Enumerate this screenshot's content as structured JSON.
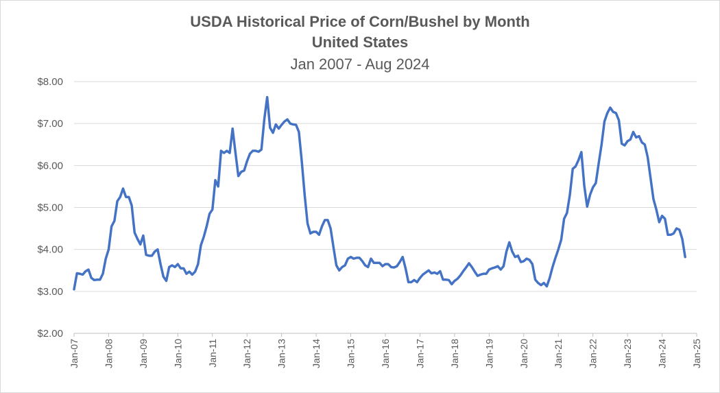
{
  "chart_data": {
    "type": "line",
    "title": "USDA Historical Price of Corn/Bushel by Month",
    "subtitle": "United States",
    "date_range": "Jan 2007 - Aug 2024",
    "ylim": [
      2.0,
      8.0
    ],
    "xlim": [
      "2007-01",
      "2025-01"
    ],
    "y_ticks": [
      "$2.00",
      "$3.00",
      "$4.00",
      "$5.00",
      "$6.00",
      "$7.00",
      "$8.00"
    ],
    "y_tick_values": [
      2,
      3,
      4,
      5,
      6,
      7,
      8
    ],
    "x_ticks": [
      "Jan-07",
      "Jan-08",
      "Jan-09",
      "Jan-10",
      "Jan-11",
      "Jan-12",
      "Jan-13",
      "Jan-14",
      "Jan-15",
      "Jan-16",
      "Jan-17",
      "Jan-18",
      "Jan-19",
      "Jan-20",
      "Jan-21",
      "Jan-22",
      "Jan-23",
      "Jan-24",
      "Jan-25"
    ],
    "grid": true,
    "line_color": "#4472c4",
    "series": [
      {
        "start": "2007-01",
        "values": [
          3.05,
          3.43,
          3.42,
          3.4,
          3.48,
          3.52,
          3.32,
          3.27,
          3.28,
          3.28,
          3.42,
          3.78,
          4.0,
          4.55,
          4.68,
          5.15,
          5.25,
          5.45,
          5.25,
          5.25,
          5.05,
          4.4,
          4.25,
          4.12,
          4.33,
          3.87,
          3.85,
          3.85,
          3.95,
          4.0,
          3.65,
          3.35,
          3.25,
          3.58,
          3.62,
          3.58,
          3.65,
          3.55,
          3.55,
          3.42,
          3.47,
          3.4,
          3.47,
          3.65,
          4.1,
          4.3,
          4.55,
          4.85,
          4.95,
          5.65,
          5.5,
          6.35,
          6.3,
          6.35,
          6.3,
          6.88,
          6.3,
          5.75,
          5.85,
          5.88,
          6.1,
          6.28,
          6.35,
          6.35,
          6.33,
          6.38,
          7.1,
          7.63,
          6.9,
          6.78,
          6.98,
          6.88,
          6.97,
          7.05,
          7.1,
          7.0,
          6.98,
          6.97,
          6.8,
          6.1,
          5.3,
          4.62,
          4.38,
          4.42,
          4.42,
          4.35,
          4.55,
          4.7,
          4.7,
          4.5,
          4.05,
          3.62,
          3.5,
          3.58,
          3.62,
          3.78,
          3.82,
          3.78,
          3.8,
          3.8,
          3.72,
          3.62,
          3.58,
          3.78,
          3.68,
          3.68,
          3.68,
          3.6,
          3.65,
          3.65,
          3.58,
          3.57,
          3.6,
          3.7,
          3.82,
          3.55,
          3.22,
          3.22,
          3.27,
          3.22,
          3.32,
          3.4,
          3.45,
          3.5,
          3.43,
          3.45,
          3.42,
          3.48,
          3.28,
          3.28,
          3.27,
          3.17,
          3.25,
          3.3,
          3.38,
          3.48,
          3.57,
          3.67,
          3.58,
          3.47,
          3.37,
          3.4,
          3.42,
          3.42,
          3.52,
          3.55,
          3.57,
          3.6,
          3.52,
          3.6,
          3.95,
          4.17,
          3.95,
          3.82,
          3.85,
          3.7,
          3.72,
          3.78,
          3.75,
          3.65,
          3.28,
          3.2,
          3.15,
          3.2,
          3.12,
          3.32,
          3.58,
          3.8,
          4.0,
          4.23,
          4.73,
          4.87,
          5.3,
          5.92,
          5.98,
          6.13,
          6.32,
          5.52,
          5.02,
          5.3,
          5.48,
          5.58,
          6.05,
          6.5,
          7.05,
          7.25,
          7.38,
          7.28,
          7.25,
          7.08,
          6.52,
          6.48,
          6.58,
          6.62,
          6.8,
          6.67,
          6.7,
          6.55,
          6.5,
          6.2,
          5.7,
          5.2,
          4.95,
          4.65,
          4.8,
          4.73,
          4.35,
          4.35,
          4.38,
          4.5,
          4.47,
          4.25,
          3.82
        ]
      }
    ]
  }
}
